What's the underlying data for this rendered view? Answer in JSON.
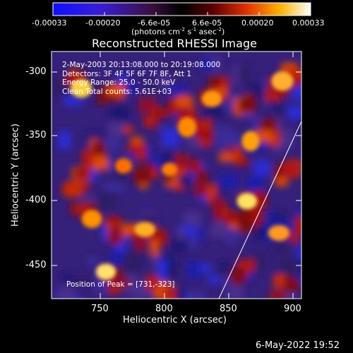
{
  "colorbar": {
    "tick_labels": [
      "-0.00033",
      "-0.00020",
      "-6.6e-05",
      "6.6e-05",
      "0.00020",
      "0.00033"
    ],
    "unit_label": "(photons cm",
    "unit_exp1": "-2",
    "unit_mid1": " s",
    "unit_exp2": "-1",
    "unit_mid2": " asec",
    "unit_exp3": "-2",
    "unit_end": ")"
  },
  "image": {
    "title": "Reconstructed RHESSI Image",
    "info_lines": [
      "2-May-2003 20:13:08.000 to 20:19:08.000",
      "Detectors: 3F 4F 5F 6F 7F 8F, Att 1",
      "Energy Range: 25.0 - 50.0 keV",
      "Clean     Total counts: 5.61E+03"
    ],
    "position_text": "Position of Peak = [731,-323]"
  },
  "axes": {
    "xlabel": "Heliocentric X (arcsec)",
    "ylabel": "Heliocentric Y (arcsec)",
    "x_ticks": [
      "750",
      "800",
      "850",
      "900"
    ],
    "y_ticks": [
      "-300",
      "-350",
      "-400",
      "-450"
    ]
  },
  "footer": {
    "timestamp": "6-May-2022 19:52"
  }
}
